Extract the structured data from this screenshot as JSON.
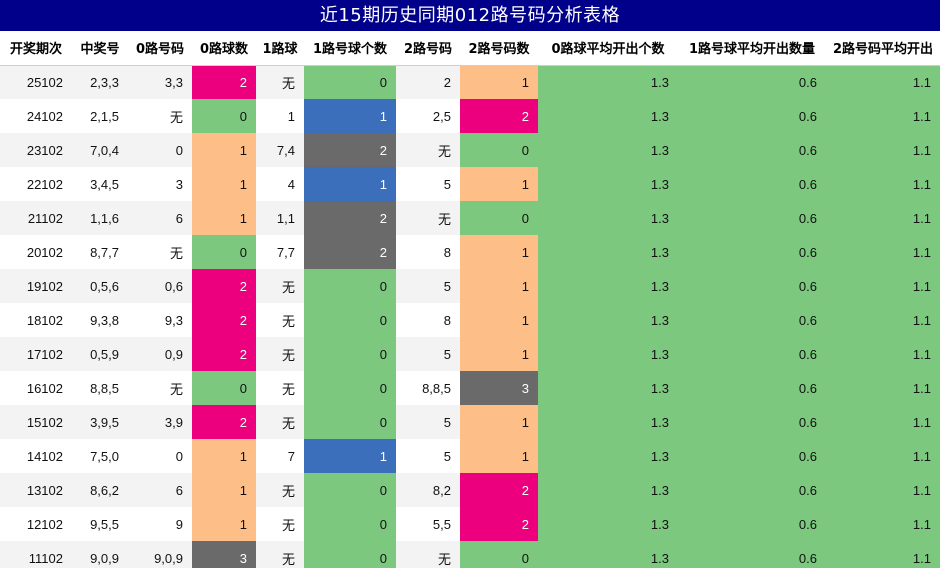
{
  "title": "近15期历史同期012路号码分析表格",
  "headers": [
    "开奖期次",
    "中奖号",
    "0路号码",
    "0路球数",
    "1路球",
    "1路号球个数",
    "2路号码",
    "2路号码数",
    "0路球平均开出个数",
    "1路号球平均开出数量",
    "2路号码平均开出"
  ],
  "rows": [
    [
      "25102",
      "2,3,3",
      "3,3",
      "2",
      "无",
      "0",
      "2",
      "1",
      "1.3",
      "0.6",
      "1.1"
    ],
    [
      "24102",
      "2,1,5",
      "无",
      "0",
      "1",
      "1",
      "2,5",
      "2",
      "1.3",
      "0.6",
      "1.1"
    ],
    [
      "23102",
      "7,0,4",
      "0",
      "1",
      "7,4",
      "2",
      "无",
      "0",
      "1.3",
      "0.6",
      "1.1"
    ],
    [
      "22102",
      "3,4,5",
      "3",
      "1",
      "4",
      "1",
      "5",
      "1",
      "1.3",
      "0.6",
      "1.1"
    ],
    [
      "21102",
      "1,1,6",
      "6",
      "1",
      "1,1",
      "2",
      "无",
      "0",
      "1.3",
      "0.6",
      "1.1"
    ],
    [
      "20102",
      "8,7,7",
      "无",
      "0",
      "7,7",
      "2",
      "8",
      "1",
      "1.3",
      "0.6",
      "1.1"
    ],
    [
      "19102",
      "0,5,6",
      "0,6",
      "2",
      "无",
      "0",
      "5",
      "1",
      "1.3",
      "0.6",
      "1.1"
    ],
    [
      "18102",
      "9,3,8",
      "9,3",
      "2",
      "无",
      "0",
      "8",
      "1",
      "1.3",
      "0.6",
      "1.1"
    ],
    [
      "17102",
      "0,5,9",
      "0,9",
      "2",
      "无",
      "0",
      "5",
      "1",
      "1.3",
      "0.6",
      "1.1"
    ],
    [
      "16102",
      "8,8,5",
      "无",
      "0",
      "无",
      "0",
      "8,8,5",
      "3",
      "1.3",
      "0.6",
      "1.1"
    ],
    [
      "15102",
      "3,9,5",
      "3,9",
      "2",
      "无",
      "0",
      "5",
      "1",
      "1.3",
      "0.6",
      "1.1"
    ],
    [
      "14102",
      "7,5,0",
      "0",
      "1",
      "7",
      "1",
      "5",
      "1",
      "1.3",
      "0.6",
      "1.1"
    ],
    [
      "13102",
      "8,6,2",
      "6",
      "1",
      "无",
      "0",
      "8,2",
      "2",
      "1.3",
      "0.6",
      "1.1"
    ],
    [
      "12102",
      "9,5,5",
      "9",
      "1",
      "无",
      "0",
      "5,5",
      "2",
      "1.3",
      "0.6",
      "1.1"
    ],
    [
      "11102",
      "9,0,9",
      "9,0,9",
      "3",
      "无",
      "0",
      "无",
      "0",
      "1.3",
      "0.6",
      "1.1"
    ]
  ],
  "colors": {
    "title_bg": "#00008b",
    "count_0": "#7dc87f",
    "count_1": "#fdbf87",
    "count_2": "#ec007e",
    "count_3": "#6a6a6a",
    "road1_count_1": "#3b6fbb",
    "road1_count_2": "#6a6a6a",
    "average_bg": "#7dc87f"
  }
}
